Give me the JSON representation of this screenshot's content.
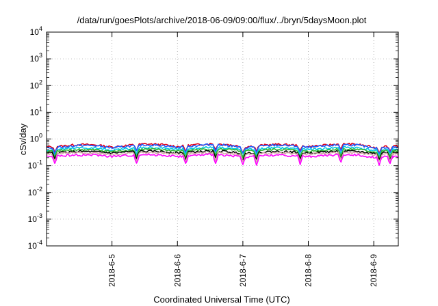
{
  "chart_data": {
    "type": "line",
    "title": "/data/run/goesPlots/archive/2018-06-09/09:00/flux/../bryn/5daysMoon.plot",
    "xlabel": "Coordinated Universal Time (UTC)",
    "ylabel": "cSv/day",
    "y_scale": "log",
    "ylim": [
      0.0001,
      10000
    ],
    "y_ticks": [
      {
        "base": "10",
        "exp": "-4",
        "value": 0.0001
      },
      {
        "base": "10",
        "exp": "-3",
        "value": 0.001
      },
      {
        "base": "10",
        "exp": "-2",
        "value": 0.01
      },
      {
        "base": "10",
        "exp": "-1",
        "value": 0.1
      },
      {
        "base": "10",
        "exp": "0",
        "value": 1
      },
      {
        "base": "10",
        "exp": "1",
        "value": 10
      },
      {
        "base": "10",
        "exp": "2",
        "value": 100
      },
      {
        "base": "10",
        "exp": "3",
        "value": 1000
      },
      {
        "base": "10",
        "exp": "4",
        "value": 10000
      }
    ],
    "xlim": [
      "2018-06-04T00:00",
      "2018-06-09T09:00"
    ],
    "x_ticks": [
      {
        "label": "2018-6-5",
        "value": "2018-06-05T00:00"
      },
      {
        "label": "2018-6-6",
        "value": "2018-06-06T00:00"
      },
      {
        "label": "2018-6-7",
        "value": "2018-06-07T00:00"
      },
      {
        "label": "2018-6-8",
        "value": "2018-06-08T00:00"
      },
      {
        "label": "2018-6-9",
        "value": "2018-06-09T00:00"
      }
    ],
    "grid": true,
    "legend": "none",
    "x": [
      "2018-06-04T00:00",
      "2018-06-04T06:00",
      "2018-06-04T12:00",
      "2018-06-04T18:00",
      "2018-06-05T00:00",
      "2018-06-05T06:00",
      "2018-06-05T12:00",
      "2018-06-05T18:00",
      "2018-06-06T00:00",
      "2018-06-06T06:00",
      "2018-06-06T12:00",
      "2018-06-06T18:00",
      "2018-06-07T00:00",
      "2018-06-07T06:00",
      "2018-06-07T12:00",
      "2018-06-07T18:00",
      "2018-06-08T00:00",
      "2018-06-08T06:00",
      "2018-06-08T12:00",
      "2018-06-08T18:00",
      "2018-06-09T00:00",
      "2018-06-09T06:00",
      "2018-06-09T09:00"
    ],
    "series": [
      {
        "color": "#e0001c",
        "values": [
          0.5,
          0.55,
          0.62,
          0.6,
          0.5,
          0.58,
          0.65,
          0.62,
          0.52,
          0.6,
          0.66,
          0.63,
          0.5,
          0.57,
          0.63,
          0.6,
          0.52,
          0.58,
          0.66,
          0.63,
          0.48,
          0.55,
          0.52
        ]
      },
      {
        "color": "#1f5fff",
        "values": [
          0.46,
          0.5,
          0.58,
          0.56,
          0.46,
          0.54,
          0.6,
          0.58,
          0.48,
          0.56,
          0.62,
          0.59,
          0.46,
          0.53,
          0.59,
          0.56,
          0.48,
          0.54,
          0.62,
          0.59,
          0.44,
          0.51,
          0.48
        ]
      },
      {
        "color": "#00c8e0",
        "values": [
          0.38,
          0.42,
          0.46,
          0.45,
          0.38,
          0.44,
          0.48,
          0.46,
          0.4,
          0.45,
          0.49,
          0.47,
          0.38,
          0.43,
          0.47,
          0.45,
          0.4,
          0.44,
          0.49,
          0.47,
          0.37,
          0.42,
          0.4
        ]
      },
      {
        "color": "#2fb52f",
        "values": [
          0.34,
          0.37,
          0.4,
          0.39,
          0.34,
          0.38,
          0.41,
          0.4,
          0.35,
          0.39,
          0.42,
          0.41,
          0.34,
          0.38,
          0.41,
          0.39,
          0.35,
          0.38,
          0.42,
          0.41,
          0.33,
          0.37,
          0.35
        ]
      },
      {
        "color": "#000000",
        "values": [
          0.3,
          0.32,
          0.34,
          0.33,
          0.3,
          0.33,
          0.35,
          0.34,
          0.3,
          0.33,
          0.35,
          0.34,
          0.29,
          0.32,
          0.34,
          0.33,
          0.3,
          0.33,
          0.35,
          0.34,
          0.29,
          0.32,
          0.3
        ]
      },
      {
        "color": "#d4a8a8",
        "values": [
          0.27,
          0.29,
          0.3,
          0.3,
          0.27,
          0.29,
          0.31,
          0.3,
          0.27,
          0.29,
          0.31,
          0.3,
          0.26,
          0.28,
          0.3,
          0.29,
          0.27,
          0.29,
          0.31,
          0.3,
          0.26,
          0.28,
          0.27
        ]
      },
      {
        "color": "#ff00ff",
        "values": [
          0.22,
          0.24,
          0.25,
          0.25,
          0.22,
          0.24,
          0.26,
          0.25,
          0.22,
          0.24,
          0.26,
          0.25,
          0.21,
          0.23,
          0.25,
          0.24,
          0.22,
          0.24,
          0.26,
          0.25,
          0.21,
          0.23,
          0.22
        ]
      }
    ]
  }
}
